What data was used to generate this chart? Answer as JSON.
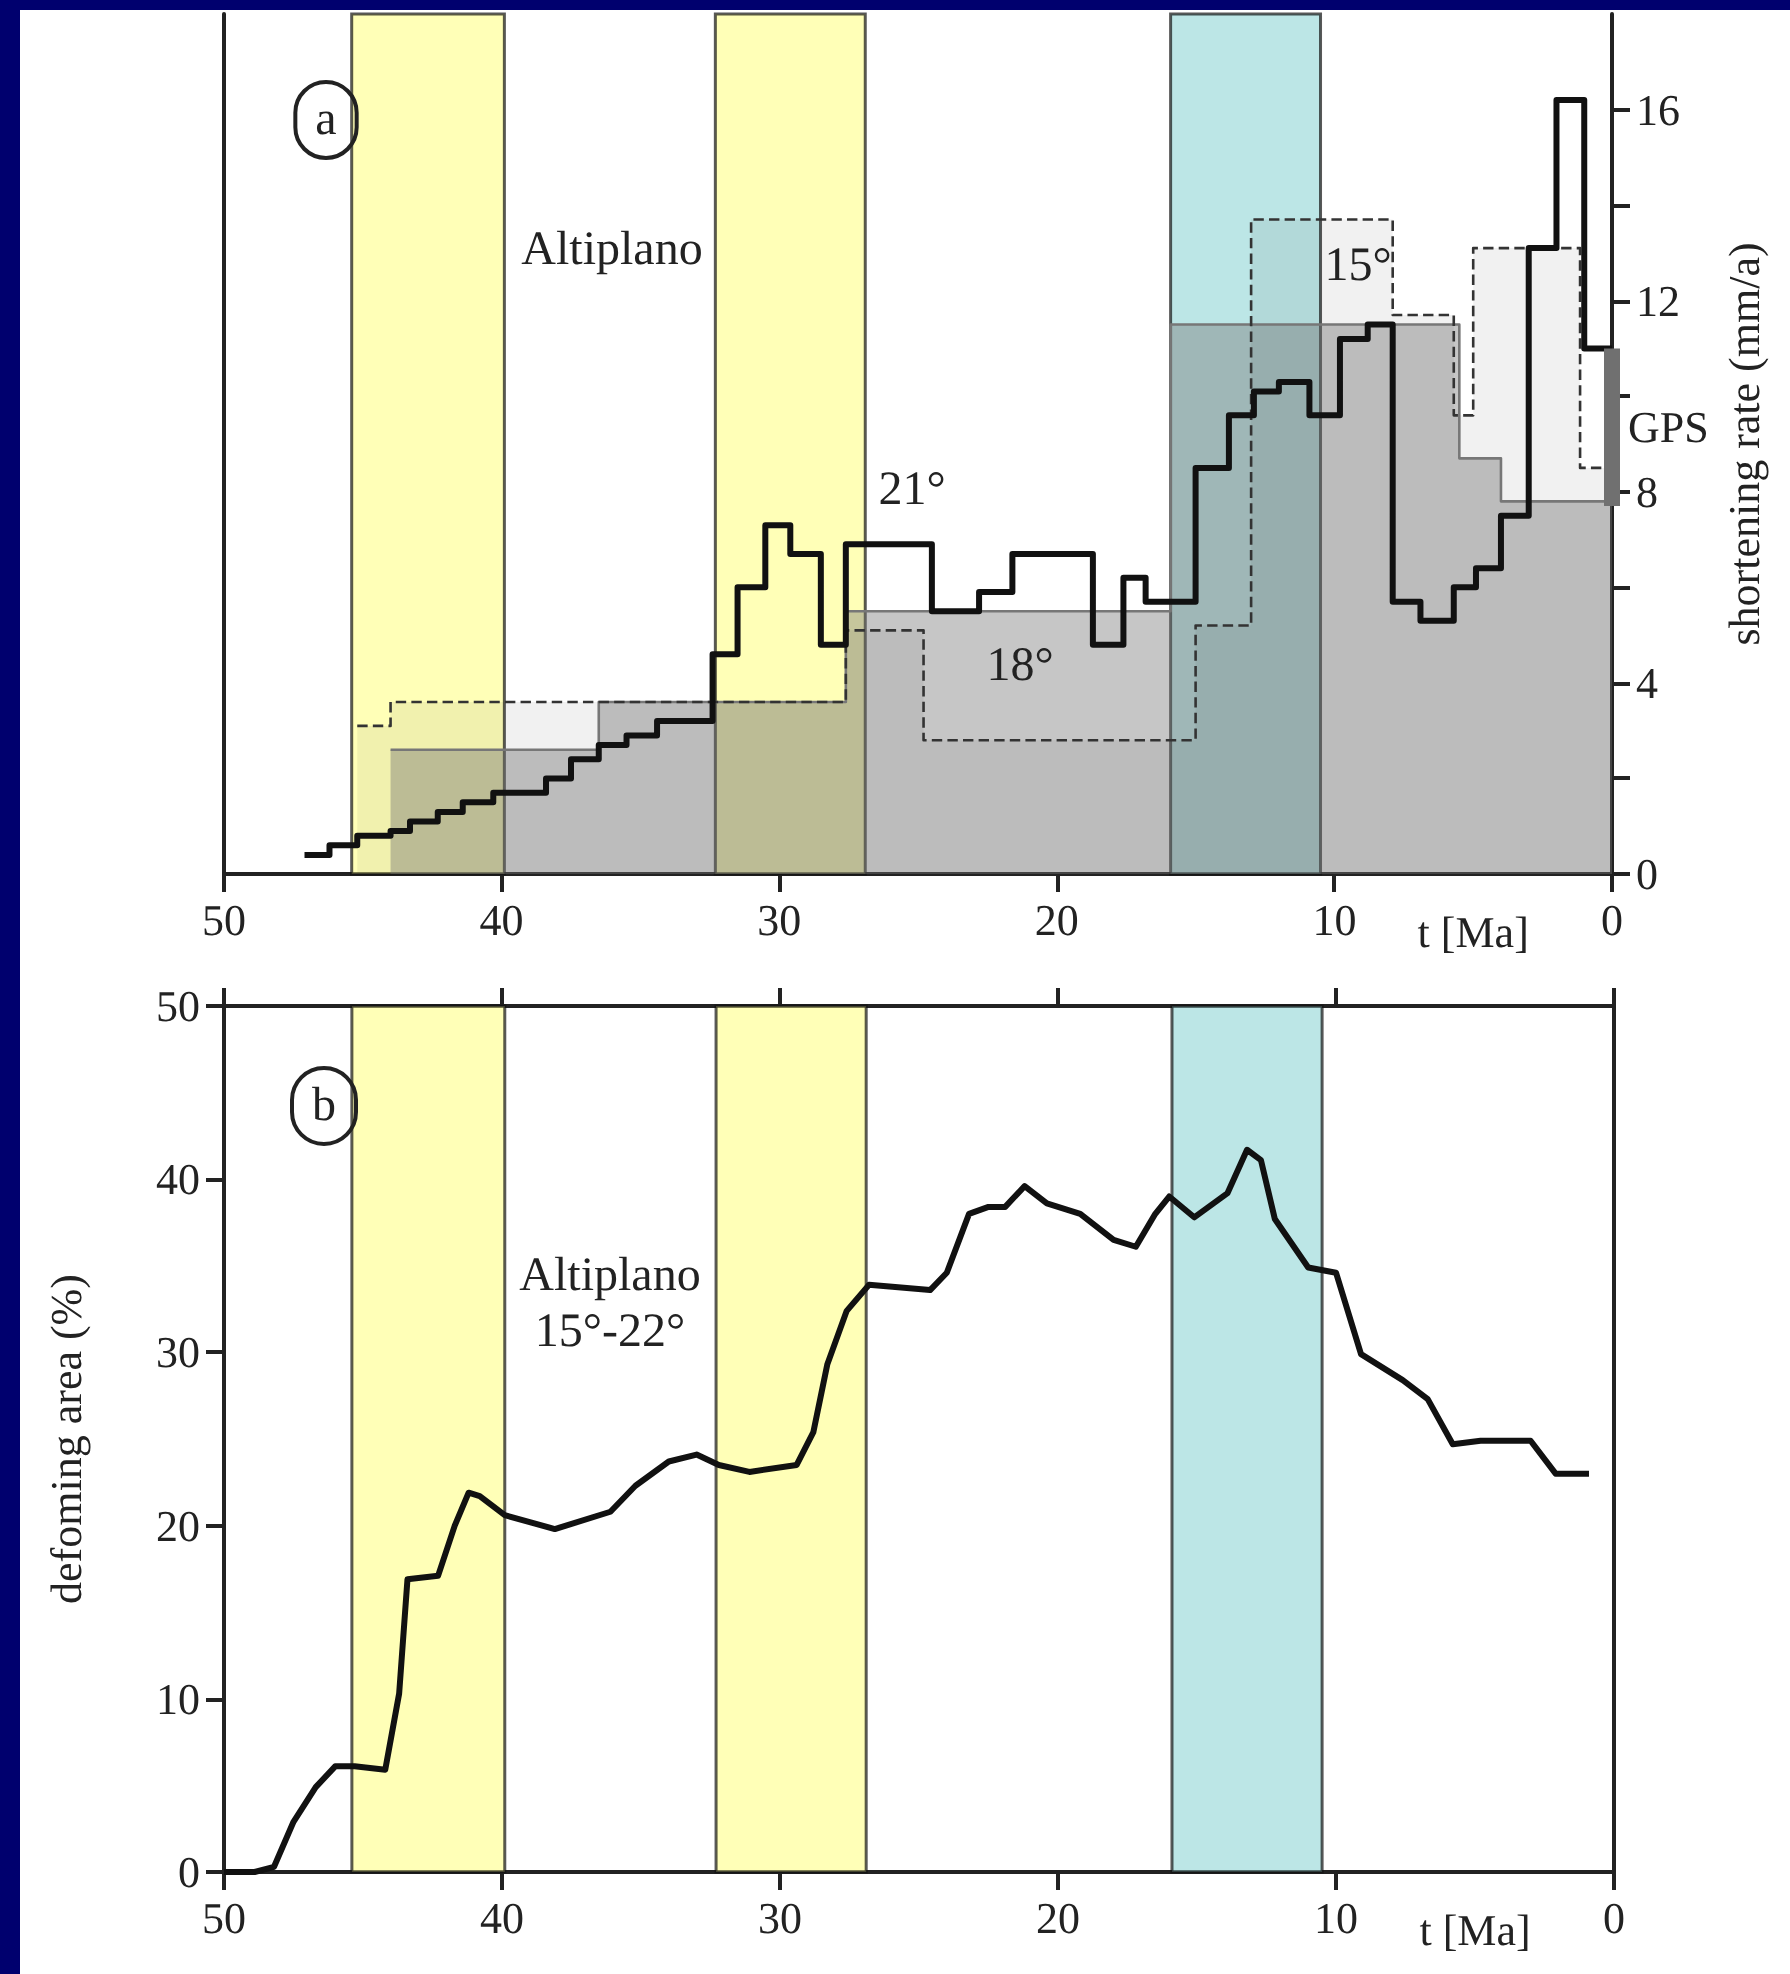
{
  "chart_data": [
    {
      "type": "step",
      "y2label": "shortening rate (mm/a)",
      "xlabel": "t [Ma]",
      "xlim": [
        50,
        0
      ],
      "xticks": [
        50,
        40,
        30,
        20,
        10,
        0
      ],
      "y2lim": [
        0,
        18
      ],
      "y2ticks": [
        0,
        {
          "value": 2,
          "label": null
        },
        4,
        {
          "value": 6,
          "label": null
        },
        8,
        {
          "value": 10,
          "label": null
        },
        12,
        {
          "value": 14,
          "label": null
        },
        16
      ],
      "annotations": [
        "a",
        "Altiplano",
        "21°",
        "18°",
        "15°"
      ],
      "bands": [
        {
          "axis": "x",
          "from": 45.4,
          "to": 39.9,
          "color": "#ffff99"
        },
        {
          "axis": "x",
          "from": 32.3,
          "to": 26.9,
          "color": "#ffff99"
        },
        {
          "axis": "x",
          "from": 15.9,
          "to": 10.5,
          "color": "#9fdcdc"
        }
      ],
      "series": [
        {
          "type": "area",
          "axis": "y2",
          "color": "#777777",
          "x": [
            44.0,
            36.5,
            36.5,
            27.6,
            27.6,
            15.9,
            15.9,
            5.5,
            5.5,
            4.0,
            4.0,
            0
          ],
          "values": [
            2.6,
            2.6,
            3.6,
            3.6,
            5.5,
            5.5,
            11.5,
            11.5,
            8.7,
            8.7,
            7.8,
            7.8
          ]
        },
        {
          "type": "area",
          "axis": "y2",
          "color": "#333333",
          "line_style": "dashed",
          "x": [
            45.2,
            44.0,
            44.0,
            27.6,
            27.6,
            24.8,
            24.8,
            15.0,
            15.0,
            13.0,
            13.0,
            7.9,
            7.9,
            5.7,
            5.7,
            5.0,
            5.0,
            1.15,
            1.15,
            0
          ],
          "values": [
            3.1,
            3.1,
            3.6,
            3.6,
            5.1,
            5.1,
            2.8,
            2.8,
            5.2,
            5.2,
            13.7,
            13.7,
            11.7,
            11.7,
            9.6,
            9.6,
            13.1,
            13.1,
            8.5,
            8.5
          ]
        },
        {
          "type": "step",
          "axis": "y2",
          "color": "#111111",
          "x": [
            47.1,
            46.2,
            45.2,
            44.0,
            43.3,
            42.3,
            41.4,
            40.3,
            38.4,
            37.5,
            36.5,
            35.5,
            34.4,
            32.4,
            31.5,
            30.5,
            29.6,
            28.5,
            27.6,
            24.5,
            22.8,
            21.6,
            18.7,
            17.6,
            16.8,
            15.0,
            13.8,
            12.9,
            12.0,
            10.9,
            9.8,
            8.8,
            7.9,
            6.9,
            5.7,
            4.9,
            4.0,
            3.0,
            2.0,
            1.0,
            0
          ],
          "values": [
            0.4,
            0.6,
            0.8,
            0.9,
            1.1,
            1.3,
            1.5,
            1.7,
            2.0,
            2.4,
            2.7,
            2.9,
            3.2,
            4.6,
            6.0,
            7.3,
            6.7,
            4.8,
            6.9,
            5.5,
            5.9,
            6.7,
            4.8,
            6.2,
            5.7,
            8.5,
            9.6,
            10.1,
            10.3,
            9.6,
            11.2,
            11.5,
            5.7,
            5.3,
            6.0,
            6.4,
            7.5,
            13.1,
            16.2,
            11.0,
            11.0
          ]
        },
        {
          "type": "bar",
          "axis": "y2",
          "name": "GPS",
          "color": "#707070",
          "x": [
            0
          ],
          "base": [
            7.7
          ],
          "values": [
            3.3
          ]
        }
      ]
    },
    {
      "type": "line",
      "ylabel": "defoming area (%)",
      "xlabel": "t [Ma]",
      "xlim": [
        50,
        0
      ],
      "xticks": [
        50,
        40,
        30,
        20,
        10,
        0
      ],
      "ylim": [
        0,
        50
      ],
      "yticks": [
        0,
        10,
        20,
        30,
        40,
        50
      ],
      "annotations": [
        "b",
        "Altiplano\n15°-22°"
      ],
      "bands": [
        {
          "axis": "x",
          "from": 45.4,
          "to": 39.9,
          "color": "#ffff99"
        },
        {
          "axis": "x",
          "from": 32.3,
          "to": 26.9,
          "color": "#ffff99"
        },
        {
          "axis": "x",
          "from": 15.9,
          "to": 10.5,
          "color": "#9fdcdc"
        }
      ],
      "series": [
        {
          "color": "#111111",
          "x": [
            50,
            48.9,
            48.2,
            47.5,
            46.7,
            46.0,
            45.3,
            44.2,
            43.7,
            43.4,
            42.3,
            41.7,
            41.2,
            40.8,
            39.9,
            38.1,
            36.1,
            35.2,
            34.0,
            33.0,
            32.2,
            31.1,
            29.4,
            28.8,
            28.3,
            27.6,
            26.8,
            24.6,
            24.0,
            23.2,
            22.5,
            21.9,
            21.2,
            20.4,
            19.2,
            18.0,
            17.2,
            16.5,
            16.0,
            15.1,
            13.9,
            13.2,
            12.7,
            12.2,
            11.0,
            10.0,
            9.1,
            7.6,
            6.7,
            5.8,
            4.8,
            3.0,
            2.1,
            0.9
          ],
          "values": [
            0,
            0,
            0.3,
            2.9,
            4.9,
            6.1,
            6.1,
            5.9,
            10.3,
            16.9,
            17.1,
            20.0,
            21.9,
            21.7,
            20.6,
            19.8,
            20.8,
            22.3,
            23.7,
            24.1,
            23.5,
            23.1,
            23.5,
            25.4,
            29.3,
            32.4,
            33.9,
            33.6,
            34.6,
            38.0,
            38.4,
            38.4,
            39.6,
            38.6,
            38.0,
            36.5,
            36.1,
            38.0,
            39.0,
            37.8,
            39.2,
            41.7,
            41.1,
            37.7,
            34.9,
            34.6,
            29.9,
            28.4,
            27.3,
            24.7,
            24.9,
            24.9,
            23.0,
            23.0
          ]
        }
      ]
    }
  ]
}
